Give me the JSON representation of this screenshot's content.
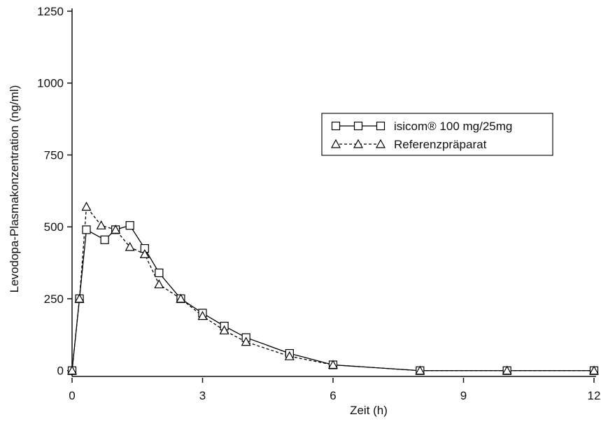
{
  "chart_data": {
    "type": "line",
    "x_label": "Zeit (h)",
    "y_label": "Levodopa-Plasmakonzentration (ng/ml)",
    "xlim": [
      0,
      12
    ],
    "xticks": [
      0,
      3,
      6,
      9,
      12
    ],
    "ylim": [
      -25,
      1250
    ],
    "yticks": [
      0,
      250,
      500,
      750,
      1000,
      1250
    ],
    "legend": "upper-right",
    "series": [
      {
        "name": "isicom® 100 mg/25mg",
        "color": "#000000",
        "marker": "square",
        "dash": false,
        "x": [
          0,
          0.17,
          0.33,
          0.75,
          1,
          1.33,
          1.67,
          2,
          2.5,
          3,
          3.5,
          4,
          5,
          6,
          8,
          10,
          12
        ],
        "values": [
          0,
          250,
          490,
          455,
          490,
          505,
          425,
          340,
          250,
          200,
          155,
          115,
          60,
          20,
          0,
          0,
          0
        ]
      },
      {
        "name": "Referenzpräparat",
        "color": "#000000",
        "marker": "triangle",
        "dash": true,
        "x": [
          0,
          0.17,
          0.33,
          0.67,
          1,
          1.33,
          1.67,
          2,
          2.5,
          3,
          3.5,
          4,
          5,
          6,
          8,
          10,
          12
        ],
        "values": [
          0,
          250,
          570,
          505,
          490,
          430,
          405,
          300,
          250,
          190,
          140,
          100,
          50,
          20,
          0,
          0,
          0
        ]
      }
    ]
  }
}
